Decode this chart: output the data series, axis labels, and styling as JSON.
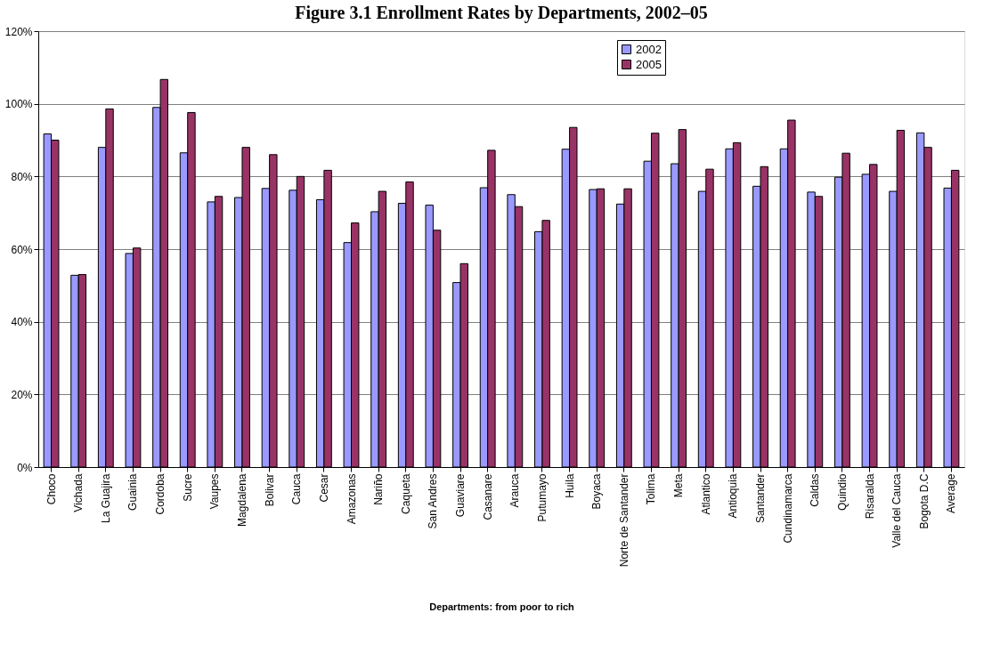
{
  "chart_data": {
    "type": "bar",
    "title": "Figure 3.1 Enrollment Rates by Departments, 2002–05",
    "xlabel": "Departments: from poor to rich",
    "categories": [
      "Choco",
      "Vichada",
      "La Guajira",
      "Guainia",
      "Cordoba",
      "Sucre",
      "Vaupes",
      "Magdalena",
      "Bolivar",
      "Cauca",
      "Cesar",
      "Amazonas",
      "Nariño",
      "Caqueta",
      "San Andres",
      "Guaviare",
      "Casanare",
      "Arauca",
      "Putumayo",
      "Huila",
      "Boyaca",
      "Norte de Santander",
      "Tolima",
      "Meta",
      "Atlantico",
      "Antioquia",
      "Santander",
      "Cundinamarca",
      "Caldas",
      "Quindio",
      "Risaralda",
      "Valle del Cauca",
      "Bogota D.C",
      "Average"
    ],
    "series": [
      {
        "name": "2002",
        "color": "#9999ff",
        "values": [
          91.7,
          52.8,
          88,
          58.8,
          99,
          86.5,
          73,
          74.2,
          76.7,
          76.2,
          73.6,
          61.8,
          70.3,
          72.6,
          72.1,
          50.8,
          76.9,
          75,
          64.8,
          87.5,
          76.4,
          72.4,
          84.2,
          83.5,
          75.9,
          87.6,
          77.3,
          87.6,
          75.7,
          79.8,
          80.6,
          75.9,
          92,
          76.8
        ]
      },
      {
        "name": "2005",
        "color": "#993366",
        "values": [
          90,
          53,
          98.6,
          60.3,
          106.7,
          97.6,
          74.5,
          88,
          86,
          80,
          81.7,
          67.2,
          75.9,
          78.5,
          65.2,
          56,
          87.2,
          71.7,
          67.9,
          93.5,
          76.6,
          76.6,
          91.9,
          92.9,
          82,
          89.3,
          82.7,
          95.5,
          74.5,
          86.4,
          83.3,
          92.7,
          88,
          81.7
        ]
      }
    ],
    "ylim": [
      0,
      120
    ],
    "yticks": [
      {
        "value": 0,
        "label": "0%"
      },
      {
        "value": 20,
        "label": "20%"
      },
      {
        "value": 40,
        "label": "40%"
      },
      {
        "value": 60,
        "label": "60%"
      },
      {
        "value": 80,
        "label": "80%"
      },
      {
        "value": 100,
        "label": "100%"
      },
      {
        "value": 120,
        "label": "120%"
      }
    ],
    "grid": "y",
    "legend": "top right"
  }
}
